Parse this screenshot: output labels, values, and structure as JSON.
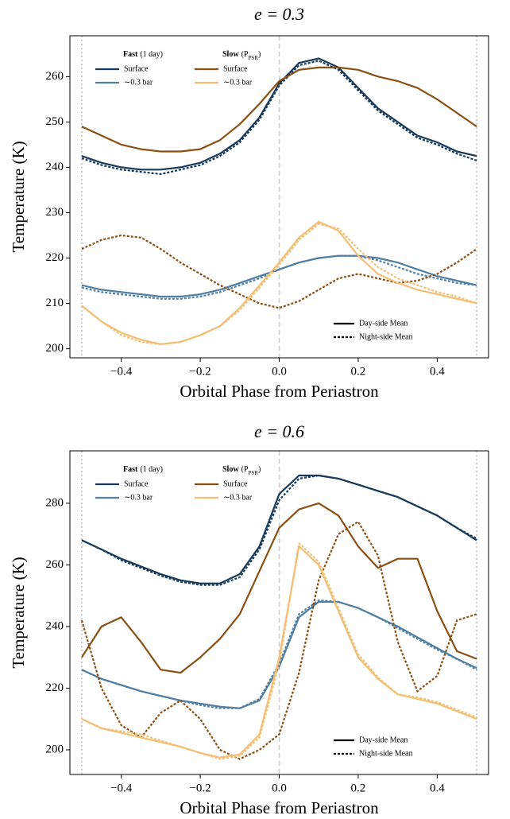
{
  "chart_data": [
    {
      "type": "line",
      "title": "e = 0.3",
      "xlabel": "Orbital Phase from Periastron",
      "ylabel": "Temperature (K)",
      "x": [
        -0.5,
        -0.45,
        -0.4,
        -0.35,
        -0.3,
        -0.25,
        -0.2,
        -0.15,
        -0.1,
        -0.05,
        0,
        0.05,
        0.1,
        0.15,
        0.2,
        0.25,
        0.3,
        0.35,
        0.4,
        0.45,
        0.5
      ],
      "xlim": [
        -0.53,
        0.53
      ],
      "ylim": [
        198,
        269
      ],
      "xticks": [
        {
          "value": -0.4,
          "label": "−0.4"
        },
        {
          "value": -0.2,
          "label": "−0.2"
        },
        {
          "value": 0,
          "label": "0.0"
        },
        0.2,
        0.4
      ],
      "yticks": [
        200,
        210,
        220,
        230,
        240,
        250,
        260
      ],
      "reference_lines": [
        {
          "x": -0.5,
          "style": "dotted"
        },
        {
          "x": 0,
          "style": "dashed"
        },
        {
          "x": 0.5,
          "style": "dotted"
        }
      ],
      "line_styles": {
        "day": "Day-side Mean",
        "night": "Night-side Mean"
      },
      "groups": [
        {
          "title": "Fast",
          "note_parts": [
            "(1 day)"
          ],
          "series": [
            {
              "name": "Surface",
              "color": "#173a5a",
              "day": [
                242.5,
                241,
                240,
                239.5,
                239.5,
                240,
                241,
                243,
                246,
                251,
                258.5,
                263,
                264,
                262,
                257.5,
                253,
                250,
                247,
                245.5,
                243.5,
                242.5
              ],
              "night": [
                242,
                240.5,
                239.5,
                239,
                238.5,
                239.5,
                240.5,
                242.5,
                245.5,
                250.5,
                258,
                262.5,
                263.5,
                261.5,
                257,
                252.5,
                249.5,
                246.5,
                245,
                243,
                241.5
              ]
            },
            {
              "name": "∼0.3 bar",
              "color": "#4f7fa3",
              "day": [
                214,
                213,
                212.5,
                212,
                211.5,
                211.5,
                212,
                213,
                214.5,
                216,
                217.5,
                219,
                220,
                220.5,
                220.5,
                220,
                219,
                217.5,
                216,
                215,
                214
              ],
              "night": [
                213.5,
                212.5,
                212,
                211.5,
                211,
                211,
                211.5,
                212.5,
                214,
                215.5,
                217.5,
                219,
                220,
                220.5,
                220.5,
                219.5,
                218,
                216.5,
                215.5,
                214.5,
                214
              ]
            }
          ]
        },
        {
          "title": "Slow",
          "note_parts": [
            "(P",
            "PSR",
            ")"
          ],
          "series": [
            {
              "name": "Surface",
              "color": "#8a4f12",
              "day": [
                249,
                247,
                245,
                244,
                243.5,
                243.5,
                244,
                246,
                249.5,
                254,
                259,
                261.5,
                262,
                262,
                261.5,
                260,
                259,
                257.5,
                255,
                252,
                249
              ],
              "night": [
                222,
                224,
                225,
                224.5,
                222,
                219,
                216.5,
                214,
                212,
                210,
                209,
                210.5,
                213,
                215.5,
                216.5,
                215.5,
                214.5,
                215,
                216.5,
                219,
                222
              ]
            },
            {
              "name": "∼0.3 bar",
              "color": "#f3bf74",
              "day": [
                209.5,
                206,
                203.5,
                202,
                201,
                201.5,
                203,
                205,
                209,
                214,
                219,
                224.5,
                228,
                226,
                220.5,
                216.5,
                214.5,
                213,
                212,
                211,
                210
              ],
              "night": [
                209.5,
                206,
                203,
                201.5,
                201,
                201.5,
                203,
                205,
                208.5,
                213.5,
                218.5,
                224,
                227.5,
                226.5,
                222,
                218,
                215.5,
                214,
                212.5,
                211.5,
                210
              ]
            }
          ]
        }
      ]
    },
    {
      "type": "line",
      "title": "e = 0.6",
      "xlabel": "Orbital Phase from Periastron",
      "ylabel": "Temperature (K)",
      "x": [
        -0.5,
        -0.45,
        -0.4,
        -0.35,
        -0.3,
        -0.25,
        -0.2,
        -0.15,
        -0.1,
        -0.05,
        0,
        0.05,
        0.1,
        0.15,
        0.2,
        0.25,
        0.3,
        0.35,
        0.4,
        0.45,
        0.5
      ],
      "xlim": [
        -0.53,
        0.53
      ],
      "ylim": [
        192,
        297
      ],
      "xticks": [
        {
          "value": -0.4,
          "label": "−0.4"
        },
        {
          "value": -0.2,
          "label": "−0.2"
        },
        {
          "value": 0,
          "label": "0.0"
        },
        0.2,
        0.4
      ],
      "yticks": [
        200,
        220,
        240,
        260,
        280
      ],
      "reference_lines": [
        {
          "x": -0.5,
          "style": "dotted"
        },
        {
          "x": 0,
          "style": "dashed"
        },
        {
          "x": 0.5,
          "style": "dotted"
        }
      ],
      "line_styles": {
        "day": "Day-side Mean",
        "night": "Night-side Mean"
      },
      "groups": [
        {
          "title": "Fast",
          "note_parts": [
            "(1 day)"
          ],
          "series": [
            {
              "name": "Surface",
              "color": "#173a5a",
              "day": [
                268,
                265,
                262,
                259.5,
                257,
                255,
                254,
                254,
                257,
                266,
                283,
                289,
                289,
                288,
                286,
                284,
                282,
                279,
                276,
                272,
                268
              ],
              "night": [
                268,
                265,
                261.5,
                259,
                256.5,
                254.5,
                253.5,
                253.5,
                256,
                265,
                281,
                288,
                289,
                288,
                286,
                284,
                282,
                279,
                276,
                272,
                268.5
              ]
            },
            {
              "name": "∼0.3 bar",
              "color": "#4f7fa3",
              "day": [
                226,
                223,
                221,
                219,
                217.5,
                216,
                215,
                214,
                213.5,
                216,
                227,
                243,
                248,
                248,
                246,
                243,
                240,
                236.5,
                233,
                229.5,
                226.5
              ],
              "night": [
                226,
                223,
                221,
                219,
                217.5,
                216,
                214.5,
                213.5,
                213.5,
                216.5,
                228,
                244,
                248.5,
                248,
                246,
                243,
                239.5,
                236,
                232.5,
                229.5,
                226
              ]
            }
          ]
        },
        {
          "title": "Slow",
          "note_parts": [
            "(P",
            "PSR",
            ")"
          ],
          "series": [
            {
              "name": "Surface",
              "color": "#8a4f12",
              "day": [
                230,
                240,
                243,
                235,
                226,
                225,
                230,
                236,
                244,
                258,
                272,
                278,
                280,
                276,
                266,
                259,
                262,
                262,
                245,
                232,
                229.5
              ],
              "night": [
                242,
                220,
                208,
                204,
                212,
                216,
                210,
                200,
                197,
                200,
                205,
                225,
                255,
                270,
                274,
                263,
                235,
                219,
                224,
                242,
                244
              ]
            },
            {
              "name": "∼0.3 bar",
              "color": "#f3bf74",
              "day": [
                210,
                207,
                205.5,
                204,
                202.5,
                201,
                199,
                197.5,
                198.5,
                205,
                230,
                266,
                260,
                245,
                230,
                223,
                218,
                216.5,
                215,
                212.5,
                210
              ],
              "night": [
                210,
                207,
                206,
                205,
                203,
                201,
                199,
                197,
                198,
                204,
                228,
                267,
                261,
                246,
                231,
                223.5,
                218,
                217,
                215.5,
                213,
                210.5
              ]
            }
          ]
        }
      ]
    }
  ]
}
